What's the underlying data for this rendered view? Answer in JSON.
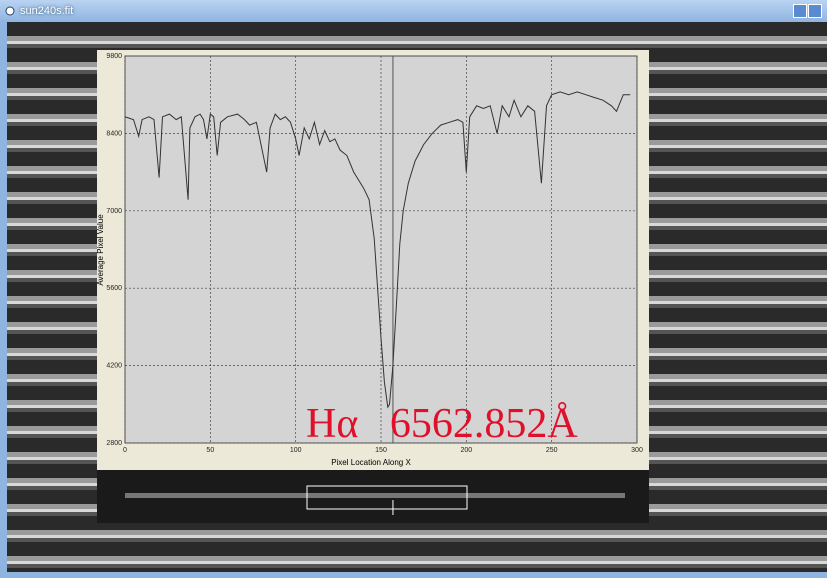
{
  "window": {
    "title": "sun240s.fit"
  },
  "chart_data": {
    "type": "line",
    "xlabel": "Pixel Location Along X",
    "ylabel": "Average Pixel Value",
    "annotation": "Hα   6562.852Å",
    "x": [
      0,
      5,
      8,
      10,
      14,
      17,
      20,
      22,
      26,
      30,
      33,
      37,
      38,
      41,
      44,
      46,
      48,
      50,
      52,
      54,
      56,
      60,
      66,
      70,
      73,
      77,
      83,
      85,
      88,
      91,
      94,
      97,
      100,
      102,
      105,
      108,
      111,
      114,
      117,
      120,
      123,
      126,
      130,
      134,
      137,
      140,
      143,
      146,
      148,
      150,
      152,
      154,
      155,
      157,
      159,
      161,
      163,
      166,
      170,
      175,
      180,
      185,
      190,
      195,
      198,
      200,
      202,
      206,
      210,
      214,
      218,
      221,
      225,
      228,
      232,
      236,
      240,
      244,
      247,
      250,
      255,
      260,
      265,
      270,
      275,
      280,
      285,
      288,
      292,
      296
    ],
    "values": [
      8700,
      8650,
      8350,
      8650,
      8700,
      8650,
      7600,
      8700,
      8750,
      8650,
      8700,
      7200,
      8500,
      8700,
      8750,
      8650,
      8300,
      8750,
      8700,
      8000,
      8600,
      8700,
      8750,
      8650,
      8550,
      8600,
      7700,
      8500,
      8750,
      8650,
      8700,
      8600,
      8300,
      8000,
      8500,
      8300,
      8600,
      8200,
      8450,
      8250,
      8300,
      8100,
      8000,
      7700,
      7550,
      7400,
      7200,
      6500,
      5600,
      4700,
      3900,
      3450,
      3500,
      4200,
      5300,
      6400,
      7000,
      7500,
      7900,
      8200,
      8400,
      8550,
      8600,
      8650,
      8600,
      7700,
      8700,
      8900,
      8850,
      8900,
      8400,
      8900,
      8700,
      9000,
      8700,
      8900,
      8800,
      7500,
      8900,
      9100,
      9150,
      9100,
      9150,
      9100,
      9050,
      9000,
      8900,
      8800,
      9100,
      9100
    ],
    "color": "#333333",
    "marker_x": 157,
    "xlim": [
      0,
      300
    ],
    "ylim": [
      2800,
      9800
    ],
    "xticks": [
      0,
      50,
      100,
      150,
      200,
      250,
      300
    ],
    "yticks": [
      2800,
      4200,
      5600,
      7000,
      8400,
      9800
    ],
    "grid": true
  }
}
